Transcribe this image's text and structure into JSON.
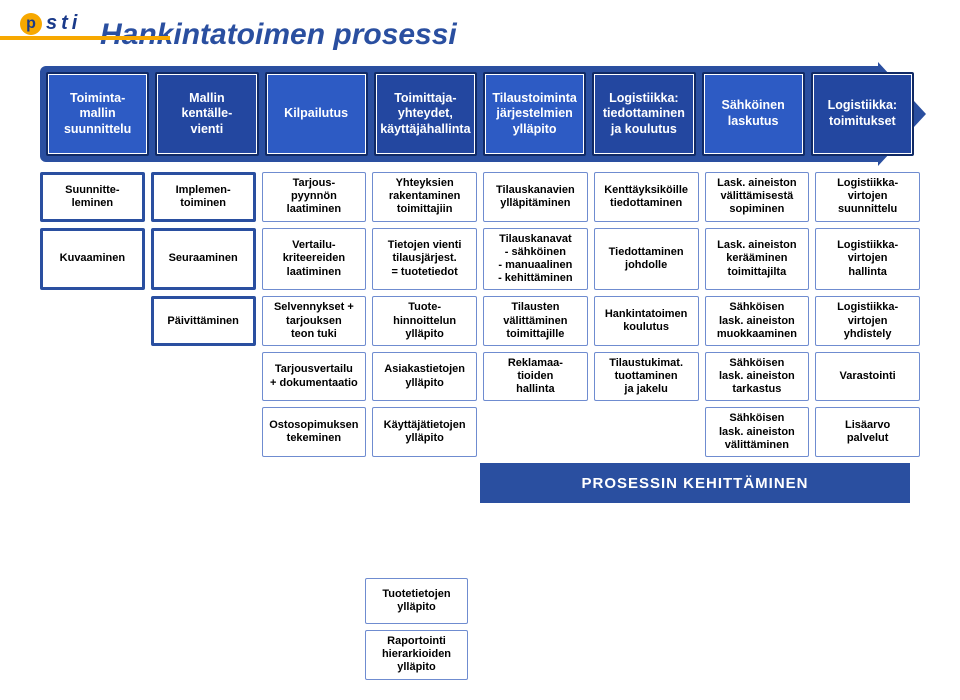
{
  "logo": {
    "letter": "p",
    "text": "sti",
    "brand_color": "#f7a800",
    "text_color": "#1a3a8a"
  },
  "title": {
    "text": "Hankintatoimen prosessi",
    "color": "#2a4fa0"
  },
  "arrow": {
    "fill": "#2a4fa0"
  },
  "stage_colors": {
    "border": "#102a66",
    "fill_odd": "#2d5bc4",
    "fill_even": "#2347a0",
    "outline": "#ffffff"
  },
  "stages": [
    "Toiminta-\nmallin\nsuunnittelu",
    "Mallin\nkentälle-\nvienti",
    "Kilpailutus",
    "Toimittaja-\nyhteydet,\nkäyttäjähallinta",
    "Tilaustoiminta\njärjestelmien\nylläpito",
    "Logistiikka:\ntiedottaminen\nja koulutus",
    "Sähköinen\nlaskutus",
    "Logistiikka:\ntoimitukset"
  ],
  "sub_style": {
    "thick_border_color": "#2a4fa0",
    "thin_border_color": "#6f8cd0",
    "text_color": "#000000"
  },
  "row1": [
    "Suunnitte-\nleminen",
    "Implemen-\ntoiminen",
    "Tarjous-\npyynnön\nlaatiminen",
    "Yhteyksien\nrakentaminen\ntoimittajiin",
    "Tilauskanavien\nylläpitäminen",
    "Kenttäyksiköille\ntiedottaminen",
    "Lask. aineiston\nvälittämisestä\nsopiminen",
    "Logistiikka-\nvirtojen\nsuunnittelu"
  ],
  "row2": [
    "Kuvaaminen",
    "Seuraaminen",
    "Vertailu-\nkriteereiden\nlaatiminen",
    "Tietojen vienti\ntilausjärjest.\n= tuotetiedot",
    "Tilauskanavat\n- sähköinen\n- manuaalinen\n- kehittäminen",
    "Tiedottaminen\njohdolle",
    "Lask. aineiston\nkerääminen\ntoimittajilta",
    "Logistiikka-\nvirtojen\nhallinta"
  ],
  "row3": {
    "c2": "Päivittäminen",
    "c3": "Selvennykset +\ntarjouksen\nteon tuki",
    "c4": "Tuote-\nhinnoittelun\nylläpito",
    "c5": "Tilausten\nvälittäminen\ntoimittajille",
    "c6": "Hankintatoimen\nkoulutus",
    "c7": "Sähköisen\nlask. aineiston\nmuokkaaminen",
    "c8": "Logistiikka-\nvirtojen\nyhdistely"
  },
  "row4": {
    "c3": "Tarjousvertailu\n+ dokumentaatio",
    "c4": "Asiakastietojen\nylläpito",
    "c5": "Reklamaa-\ntioiden\nhallinta",
    "c6": "Tilaustukimat.\ntuottaminen\nja jakelu",
    "c7": "Sähköisen\nlask. aineiston\ntarkastus",
    "c8": "Varastointi"
  },
  "row5": {
    "c3": "Ostosopimuksen\ntekeminen",
    "c4": "Käyttäjätietojen\nylläpito",
    "c7": "Sähköisen\nlask. aineiston\nvälittäminen",
    "c8": "Lisäarvo\npalvelut"
  },
  "row6": {
    "c4": "Tuotetietojen\nylläpito"
  },
  "row7": {
    "c4": "Raportointi\nhierarkioiden\nylläpito"
  },
  "dev_band": {
    "text": "PROSESSIN KEHITTÄMINEN",
    "fill": "#2a4fa0"
  }
}
